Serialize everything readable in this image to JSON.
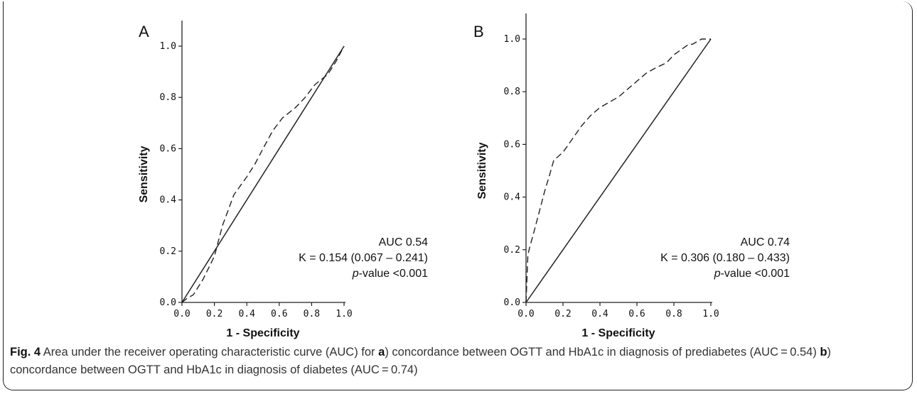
{
  "chart_data": [
    {
      "type": "line",
      "panel_label": "A",
      "xlabel": "1 - Specificity",
      "ylabel": "Sensitivity",
      "xlim": [
        0.0,
        1.0
      ],
      "ylim": [
        0.0,
        1.0
      ],
      "xticks": [
        "0.0",
        "0.2",
        "0.4",
        "0.6",
        "0.8",
        "1.0"
      ],
      "yticks": [
        "0.0",
        "0.2",
        "0.4",
        "0.6",
        "0.8",
        "1.0"
      ],
      "grid": false,
      "series": [
        {
          "style": "dashed",
          "x": [
            0.0,
            0.03,
            0.07,
            0.13,
            0.2,
            0.25,
            0.32,
            0.4,
            0.45,
            0.5,
            0.56,
            0.62,
            0.7,
            0.76,
            0.82,
            0.9,
            0.95,
            1.0
          ],
          "y": [
            0.0,
            0.015,
            0.03,
            0.09,
            0.18,
            0.3,
            0.42,
            0.49,
            0.54,
            0.6,
            0.67,
            0.72,
            0.76,
            0.8,
            0.85,
            0.89,
            0.94,
            1.0
          ]
        },
        {
          "style": "solid",
          "x": [
            0.0,
            1.0
          ],
          "y": [
            0.0,
            1.0
          ]
        }
      ],
      "annotation": {
        "auc": "AUC  0.54",
        "kappa": "K = 0.154 (0.067 – 0.241)",
        "pvalue_label": "p",
        "pvalue_rest": "-value <0.001"
      }
    },
    {
      "type": "line",
      "panel_label": "B",
      "xlabel": "1 - Specificity",
      "ylabel": "Sensitivity",
      "xlim": [
        0.0,
        1.0
      ],
      "ylim": [
        0.0,
        1.0
      ],
      "xticks": [
        "0.0",
        "0.2",
        "0.4",
        "0.6",
        "0.8",
        "1.0"
      ],
      "yticks": [
        "0.0",
        "0.2",
        "0.4",
        "0.6",
        "0.8",
        "1.0"
      ],
      "grid": false,
      "series": [
        {
          "style": "dashed",
          "x": [
            0.0,
            0.01,
            0.02,
            0.04,
            0.07,
            0.1,
            0.13,
            0.15,
            0.2,
            0.25,
            0.3,
            0.35,
            0.4,
            0.45,
            0.5,
            0.55,
            0.6,
            0.65,
            0.7,
            0.76,
            0.8,
            0.84,
            0.88,
            0.9,
            0.95,
            1.0
          ],
          "y": [
            0.0,
            0.18,
            0.21,
            0.26,
            0.34,
            0.42,
            0.49,
            0.54,
            0.57,
            0.62,
            0.67,
            0.71,
            0.74,
            0.76,
            0.78,
            0.81,
            0.84,
            0.87,
            0.89,
            0.91,
            0.94,
            0.96,
            0.98,
            0.98,
            1.0,
            1.0
          ]
        },
        {
          "style": "solid",
          "x": [
            0.0,
            1.0
          ],
          "y": [
            0.0,
            1.0
          ]
        }
      ],
      "annotation": {
        "auc": "AUC  0.74",
        "kappa": "K = 0.306 (0.180 – 0.433)",
        "pvalue_label": "p",
        "pvalue_rest": "-value <0.001"
      }
    }
  ],
  "caption": {
    "fig_label": "Fig. 4",
    "text_1": " Area under the receiver operating characteristic curve (AUC) for ",
    "a_label": "a",
    "text_2": ") concordance between OGTT and HbA1c in diagnosis of prediabetes (AUC = 0.54) ",
    "b_label": "b",
    "text_3": ") concordance between OGTT and HbA1c in diagnosis of diabetes (AUC = 0.74)"
  },
  "colors": {
    "line": "#222222",
    "text": "#111111",
    "caption": "#333333"
  }
}
